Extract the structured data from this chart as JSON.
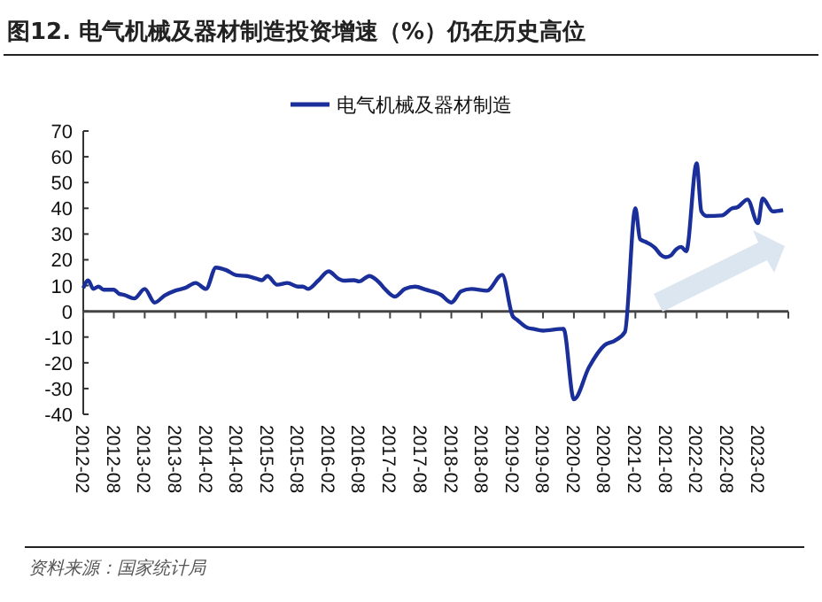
{
  "chart_data": {
    "type": "line",
    "title": "图12. 电气机械及器材制造投资增速（%）仍在历史高位",
    "x": [
      "2012-02",
      "2012-03",
      "2012-04",
      "2012-05",
      "2012-06",
      "2012-08",
      "2012-09",
      "2012-10",
      "2012-12",
      "2013-02",
      "2013-04",
      "2013-06",
      "2013-08",
      "2013-10",
      "2013-12",
      "2014-02",
      "2014-04",
      "2014-06",
      "2014-08",
      "2014-10",
      "2014-12",
      "2015-01",
      "2015-02",
      "2015-04",
      "2015-06",
      "2015-08",
      "2015-09",
      "2015-10",
      "2015-12",
      "2016-02",
      "2016-04",
      "2016-05",
      "2016-07",
      "2016-08",
      "2016-10",
      "2016-12",
      "2017-01",
      "2017-03",
      "2017-05",
      "2017-07",
      "2017-09",
      "2017-12",
      "2018-02",
      "2018-04",
      "2018-06",
      "2018-09",
      "2018-12",
      "2019-02",
      "2019-03",
      "2019-05",
      "2019-06",
      "2019-08",
      "2019-12",
      "2020-02",
      "2020-05",
      "2020-08",
      "2020-10",
      "2020-12",
      "2021-02",
      "2021-03",
      "2021-04",
      "2021-05",
      "2021-06",
      "2021-07",
      "2021-08",
      "2021-09",
      "2021-10",
      "2021-11",
      "2021-12",
      "2022-02",
      "2022-03",
      "2022-04",
      "2022-07",
      "2022-09",
      "2022-10",
      "2022-12",
      "2023-02",
      "2023-03",
      "2023-05",
      "2023-07"
    ],
    "series": [
      {
        "name": "电气机械及器材制造",
        "color": "#1a2f9a",
        "values": [
          9,
          12,
          8.7,
          9.6,
          8.4,
          8.4,
          6.8,
          6.4,
          5,
          8.7,
          3.4,
          6.2,
          8,
          9.1,
          11,
          8.7,
          17,
          16,
          14,
          13.7,
          12.6,
          12.1,
          13.7,
          10.3,
          11,
          9.6,
          9.6,
          8.7,
          11.9,
          15.5,
          12.6,
          11.9,
          12.1,
          11.6,
          13.7,
          11,
          8.7,
          5.7,
          8.7,
          9.6,
          8.4,
          6.4,
          3.4,
          7.8,
          8.7,
          8,
          14.2,
          -1.8,
          -3.4,
          -6.4,
          -6.8,
          -7.5,
          -6.8,
          -34.2,
          -21.7,
          -13.2,
          -11.4,
          -8,
          40,
          28,
          27,
          26,
          24.4,
          22,
          21,
          21.7,
          24,
          25,
          23.3,
          57.5,
          38.8,
          37,
          37.2,
          40,
          40.4,
          43.4,
          34.2,
          43.8,
          38.8,
          39.3
        ]
      }
    ],
    "xlim": [
      "2012-02",
      "2023-08"
    ],
    "xticks": [
      "2012-02",
      "2012-08",
      "2013-02",
      "2013-08",
      "2014-02",
      "2014-08",
      "2015-02",
      "2015-08",
      "2016-02",
      "2016-08",
      "2017-02",
      "2017-08",
      "2018-02",
      "2018-08",
      "2019-02",
      "2019-08",
      "2020-02",
      "2020-08",
      "2021-02",
      "2021-08",
      "2022-02",
      "2022-08",
      "2023-02"
    ],
    "ylim": [
      -40,
      70
    ],
    "yticks": [
      -40,
      -30,
      -20,
      -10,
      0,
      10,
      20,
      30,
      40,
      50,
      60,
      70
    ],
    "legend": "top",
    "annotations": [
      "资料来源：国家统计局"
    ]
  }
}
